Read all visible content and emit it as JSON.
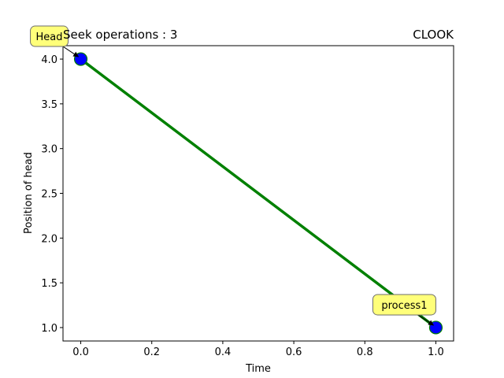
{
  "chart_data": {
    "type": "line",
    "title_left": "Seek operations : 3",
    "title_right": "CLOOK",
    "xlabel": "Time",
    "ylabel": "Position of head",
    "xlim": [
      -0.05,
      1.05
    ],
    "ylim": [
      0.85,
      4.15
    ],
    "xticks": [
      0.0,
      0.2,
      0.4,
      0.6,
      0.8,
      1.0
    ],
    "xtick_labels": [
      "0.0",
      "0.2",
      "0.4",
      "0.6",
      "0.8",
      "1.0"
    ],
    "yticks": [
      1.0,
      1.5,
      2.0,
      2.5,
      3.0,
      3.5,
      4.0
    ],
    "ytick_labels": [
      "1.0",
      "1.5",
      "2.0",
      "2.5",
      "3.0",
      "3.5",
      "4.0"
    ],
    "series": [
      {
        "x": [
          0,
          1
        ],
        "y": [
          4,
          1
        ],
        "color": "#008000",
        "marker_color": "#0000ff"
      }
    ],
    "annotations": [
      {
        "text": "Head",
        "x": 0,
        "y": 4
      },
      {
        "text": "process1",
        "x": 1,
        "y": 1
      }
    ],
    "annotation_box_color": "#ffff7a",
    "grid": false,
    "legend": "none"
  }
}
